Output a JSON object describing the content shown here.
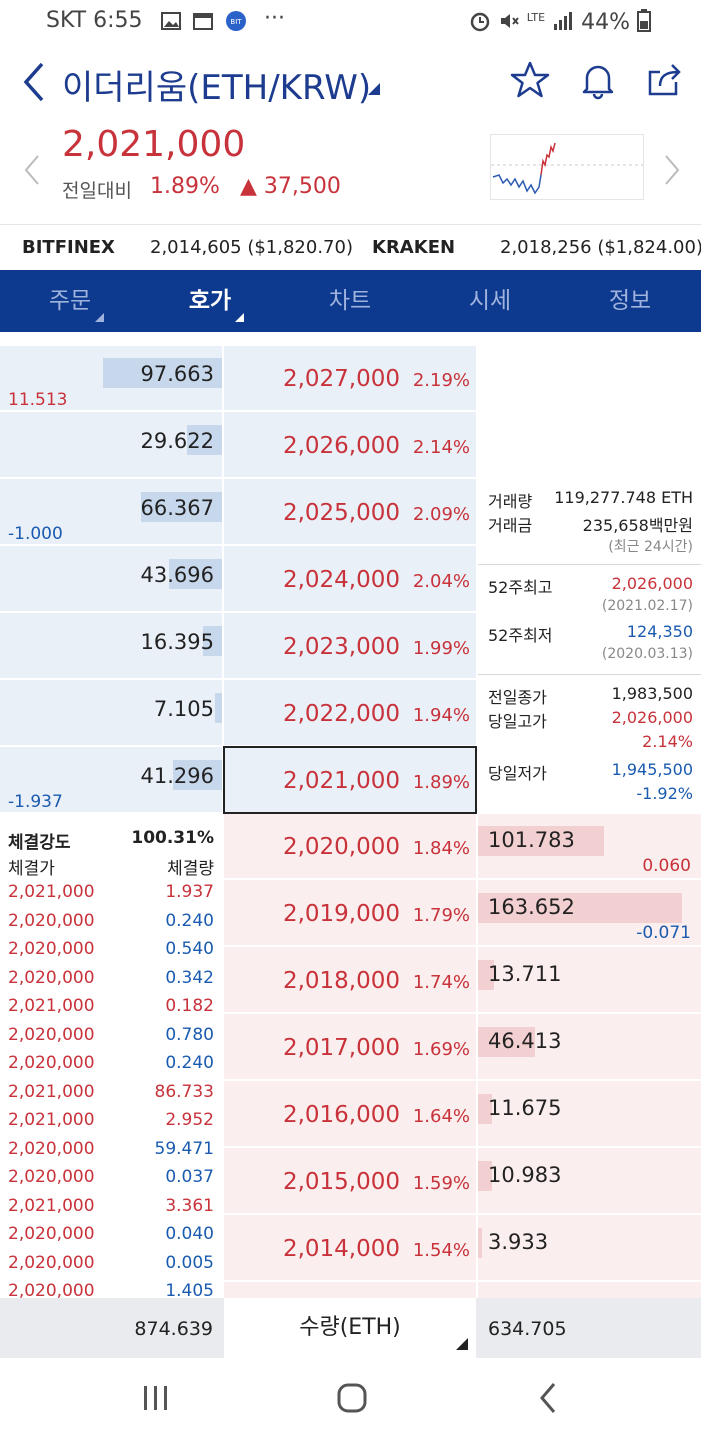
{
  "status": {
    "carrier": "SKT",
    "time": "6:55",
    "more": "···",
    "battery": "44%",
    "network": "LTE"
  },
  "header": {
    "title": "이더리움(ETH/KRW)"
  },
  "price": {
    "current": "2,021,000",
    "prev_label": "전일대비",
    "change_pct": "1.89%",
    "change_abs": "▲ 37,500"
  },
  "exchanges": [
    {
      "name": "BITFINEX",
      "value": "2,014,605 ($1,820.70)"
    },
    {
      "name": "KRAKEN",
      "value": "2,018,256 ($1,824.00)"
    }
  ],
  "tabs": [
    {
      "label": "주문"
    },
    {
      "label": "호가"
    },
    {
      "label": "차트"
    },
    {
      "label": "시세"
    },
    {
      "label": "정보"
    }
  ],
  "asks": [
    {
      "qty": "97.663",
      "qty_fraction": 1.0,
      "change": "11.513",
      "price": "2,027,000",
      "pct": "2.19%"
    },
    {
      "qty": "29.622",
      "qty_fraction": 0.3,
      "change": "",
      "price": "2,026,000",
      "pct": "2.14%"
    },
    {
      "qty": "66.367",
      "qty_fraction": 0.68,
      "change": "-1.000",
      "price": "2,025,000",
      "pct": "2.09%"
    },
    {
      "qty": "43.696",
      "qty_fraction": 0.45,
      "change": "",
      "price": "2,024,000",
      "pct": "2.04%"
    },
    {
      "qty": "16.395",
      "qty_fraction": 0.17,
      "change": "",
      "price": "2,023,000",
      "pct": "1.99%"
    },
    {
      "qty": "7.105",
      "qty_fraction": 0.07,
      "change": "",
      "price": "2,022,000",
      "pct": "1.94%"
    },
    {
      "qty": "41.296",
      "qty_fraction": 0.42,
      "change": "-1.937",
      "price": "2,021,000",
      "pct": "1.89%"
    }
  ],
  "bids": [
    {
      "qty": "101.783",
      "qty_fraction": 0.62,
      "change": "0.060",
      "price": "2,020,000",
      "pct": "1.84%"
    },
    {
      "qty": "163.652",
      "qty_fraction": 1.0,
      "change": "-0.071",
      "price": "2,019,000",
      "pct": "1.79%"
    },
    {
      "qty": "13.711",
      "qty_fraction": 0.08,
      "change": "",
      "price": "2,018,000",
      "pct": "1.74%"
    },
    {
      "qty": "46.413",
      "qty_fraction": 0.28,
      "change": "",
      "price": "2,017,000",
      "pct": "1.69%"
    },
    {
      "qty": "11.675",
      "qty_fraction": 0.07,
      "change": "",
      "price": "2,016,000",
      "pct": "1.64%"
    },
    {
      "qty": "10.983",
      "qty_fraction": 0.07,
      "change": "",
      "price": "2,015,000",
      "pct": "1.59%"
    },
    {
      "qty": "3.933",
      "qty_fraction": 0.02,
      "change": "",
      "price": "2,014,000",
      "pct": "1.54%"
    }
  ],
  "info": {
    "volume_label": "거래량",
    "volume": "119,277.748 ETH",
    "amount_label": "거래금",
    "amount": "235,658백만원",
    "period": "(최근 24시간)",
    "high52_label": "52주최고",
    "high52": "2,026,000",
    "high52_date": "(2021.02.17)",
    "low52_label": "52주최저",
    "low52": "124,350",
    "low52_date": "(2020.03.13)",
    "prev_close_label": "전일종가",
    "prev_close": "1,983,500",
    "day_high_label": "당일고가",
    "day_high": "2,026,000",
    "day_high_pct": "2.14%",
    "day_low_label": "당일저가",
    "day_low": "1,945,500",
    "day_low_pct": "-1.92%"
  },
  "trades": {
    "strength_label": "체결강도",
    "strength": "100.31%",
    "price_header": "체결가",
    "qty_header": "체결량",
    "rows": [
      {
        "price": "2,021,000",
        "qty": "1.937",
        "side": "buy"
      },
      {
        "price": "2,020,000",
        "qty": "0.240",
        "side": "sell"
      },
      {
        "price": "2,020,000",
        "qty": "0.540",
        "side": "sell"
      },
      {
        "price": "2,020,000",
        "qty": "0.342",
        "side": "sell"
      },
      {
        "price": "2,021,000",
        "qty": "0.182",
        "side": "buy"
      },
      {
        "price": "2,020,000",
        "qty": "0.780",
        "side": "sell"
      },
      {
        "price": "2,020,000",
        "qty": "0.240",
        "side": "sell"
      },
      {
        "price": "2,021,000",
        "qty": "86.733",
        "side": "buy"
      },
      {
        "price": "2,021,000",
        "qty": "2.952",
        "side": "buy"
      },
      {
        "price": "2,020,000",
        "qty": "59.471",
        "side": "sell"
      },
      {
        "price": "2,020,000",
        "qty": "0.037",
        "side": "sell"
      },
      {
        "price": "2,021,000",
        "qty": "3.361",
        "side": "buy"
      },
      {
        "price": "2,020,000",
        "qty": "0.040",
        "side": "sell"
      },
      {
        "price": "2,020,000",
        "qty": "0.005",
        "side": "sell"
      },
      {
        "price": "2,020,000",
        "qty": "1.405",
        "side": "sell"
      }
    ]
  },
  "footer": {
    "ask_total": "874.639",
    "unit": "수량(ETH)",
    "bid_total": "634.705"
  },
  "colors": {
    "brand": "#0d3a8f",
    "up": "#c8323a",
    "down": "#1a5bb0"
  }
}
